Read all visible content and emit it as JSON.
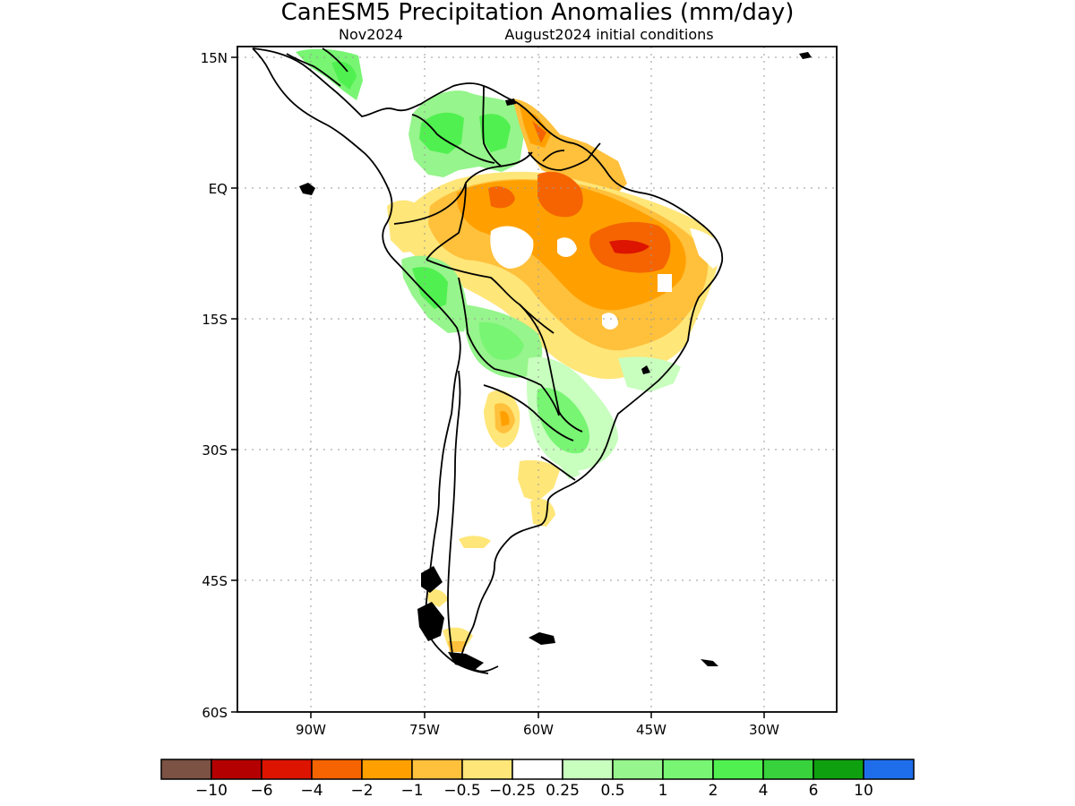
{
  "map": {
    "title": "CanESM5 Precipitation Anomalies (mm/day)",
    "subtitle_left": "Nov2024",
    "subtitle_right": "August2024 initial conditions",
    "lat_ticks": [
      "15N",
      "EQ",
      "15S",
      "30S",
      "45S",
      "60S"
    ],
    "lon_ticks": [
      "90W",
      "75W",
      "60W",
      "45W",
      "30W"
    ],
    "grid": true
  },
  "colorbar": {
    "colors": [
      "#7b5243",
      "#b40000",
      "#dc1400",
      "#f56400",
      "#ffa000",
      "#ffc03c",
      "#ffe678",
      "#ffffff",
      "#c8ffbe",
      "#96f58c",
      "#78f573",
      "#50f050",
      "#37d23c",
      "#0fa00f",
      "#1e6eeb"
    ],
    "labels": [
      "−10",
      "−6",
      "−4",
      "−2",
      "−1",
      "−0.5",
      "−0.25",
      "0.25",
      "0.5",
      "1",
      "2",
      "4",
      "6",
      "10"
    ]
  }
}
